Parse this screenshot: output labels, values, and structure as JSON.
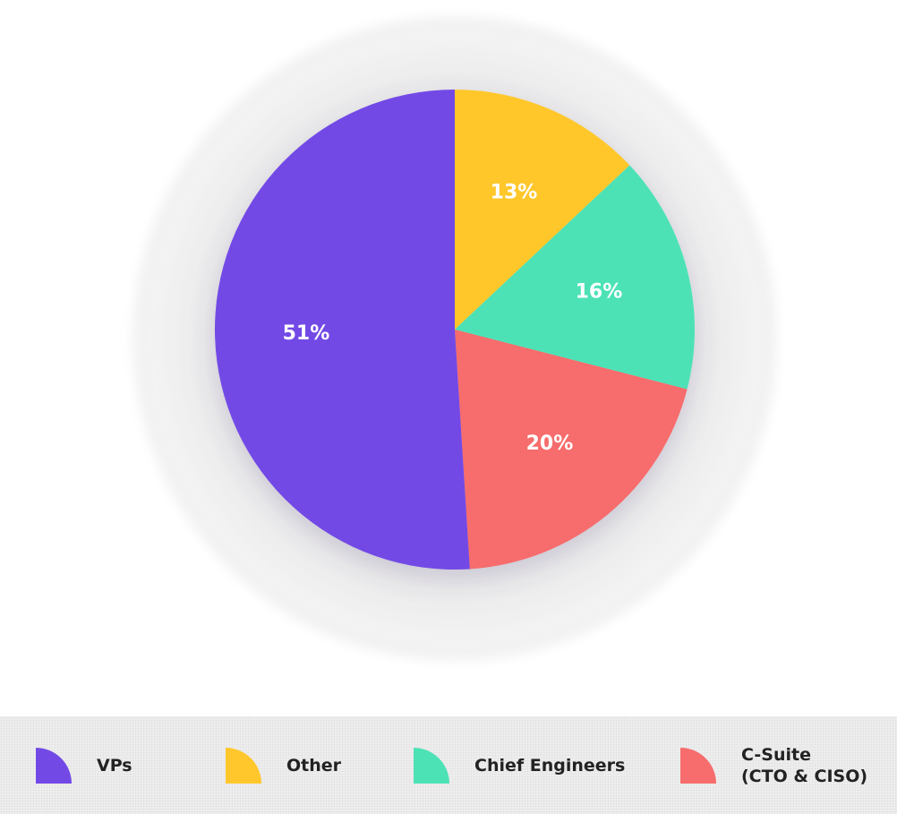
{
  "chart_data": {
    "type": "pie",
    "title": "",
    "slices": [
      {
        "name": "Other",
        "value": 13,
        "label": "13%",
        "color": "#FFC72C"
      },
      {
        "name": "Chief Engineers",
        "value": 16,
        "label": "16%",
        "color": "#4DE2B6"
      },
      {
        "name": "C-Suite\n(CTO & CISO)",
        "value": 20,
        "label": "20%",
        "color": "#F76C6C"
      },
      {
        "name": "VPs",
        "value": 51,
        "label": "51%",
        "color": "#7349E6"
      }
    ],
    "start_angle_deg": 0,
    "direction": "clockwise",
    "legend_position": "bottom"
  },
  "legend": {
    "items": [
      {
        "label": "VPs",
        "color": "#7349E6"
      },
      {
        "label": "Other",
        "color": "#FFC72C"
      },
      {
        "label": "Chief Engineers",
        "color": "#4DE2B6"
      },
      {
        "label": "C-Suite\n(CTO & CISO)",
        "color": "#F76C6C"
      }
    ]
  }
}
